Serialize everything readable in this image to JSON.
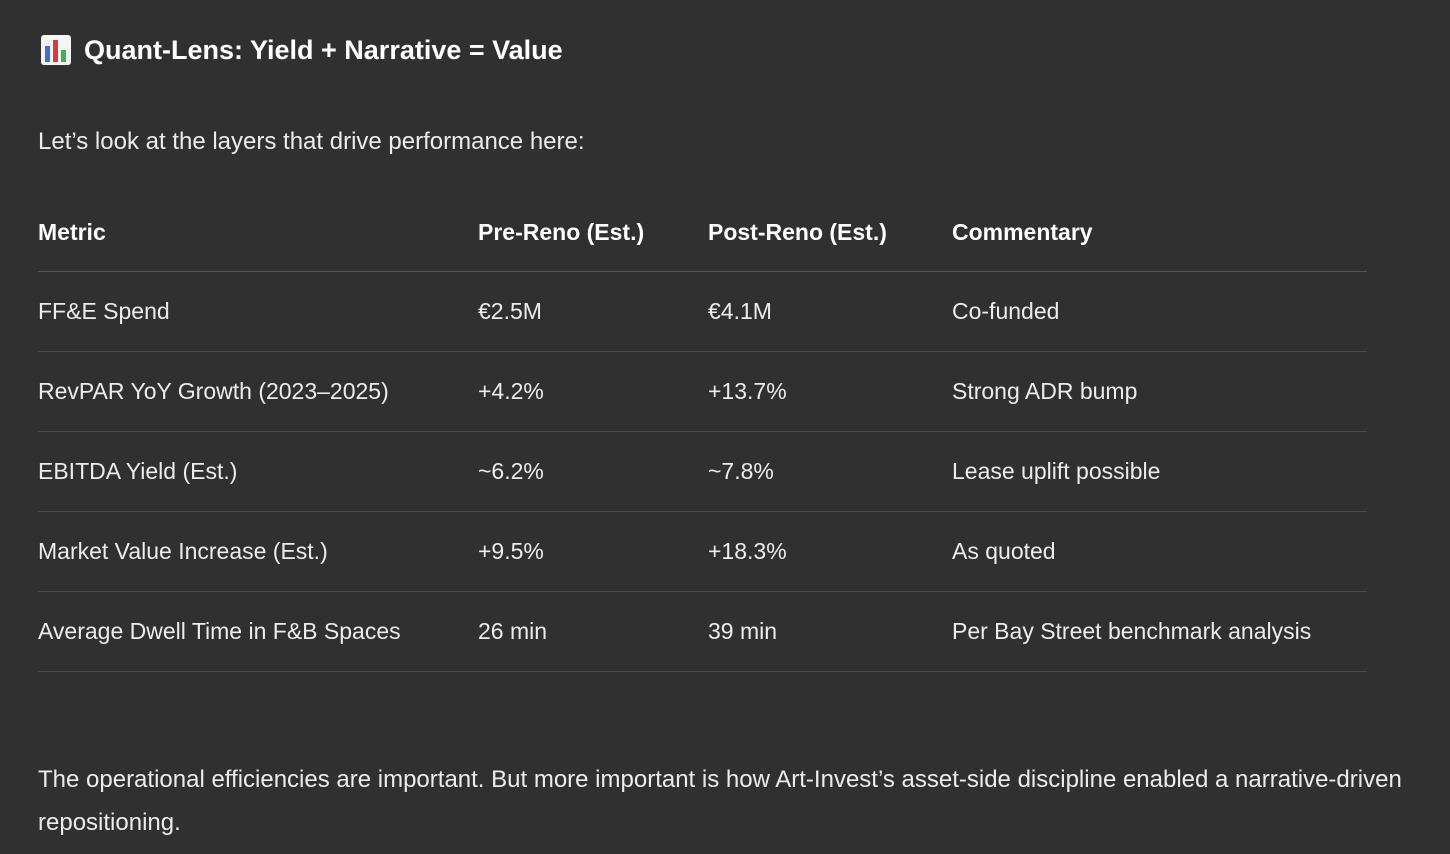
{
  "heading": {
    "icon": "bar-chart-icon",
    "text": "Quant-Lens: Yield + Narrative = Value"
  },
  "intro": "Let’s look at the layers that drive performance here:",
  "table": {
    "headers": [
      "Metric",
      "Pre-Reno (Est.)",
      "Post-Reno (Est.)",
      "Commentary"
    ],
    "rows": [
      [
        "FF&E Spend",
        "€2.5M",
        "€4.1M",
        "Co-funded"
      ],
      [
        "RevPAR YoY Growth (2023–2025)",
        "+4.2%",
        "+13.7%",
        "Strong ADR bump"
      ],
      [
        "EBITDA Yield (Est.)",
        "~6.2%",
        "~7.8%",
        "Lease uplift possible"
      ],
      [
        "Market Value Increase (Est.)",
        "+9.5%",
        "+18.3%",
        "As quoted"
      ],
      [
        "Average Dwell Time in F&B Spaces",
        "26 min",
        "39 min",
        "Per Bay Street benchmark analysis"
      ]
    ]
  },
  "outro": "The operational efficiencies are important. But more important is how Art-Invest’s asset-side discipline enabled a narrative-driven repositioning.",
  "colors": {
    "background": "#303030",
    "text": "#ececec",
    "heading": "#ffffff",
    "divider": "#4a4a4a"
  }
}
